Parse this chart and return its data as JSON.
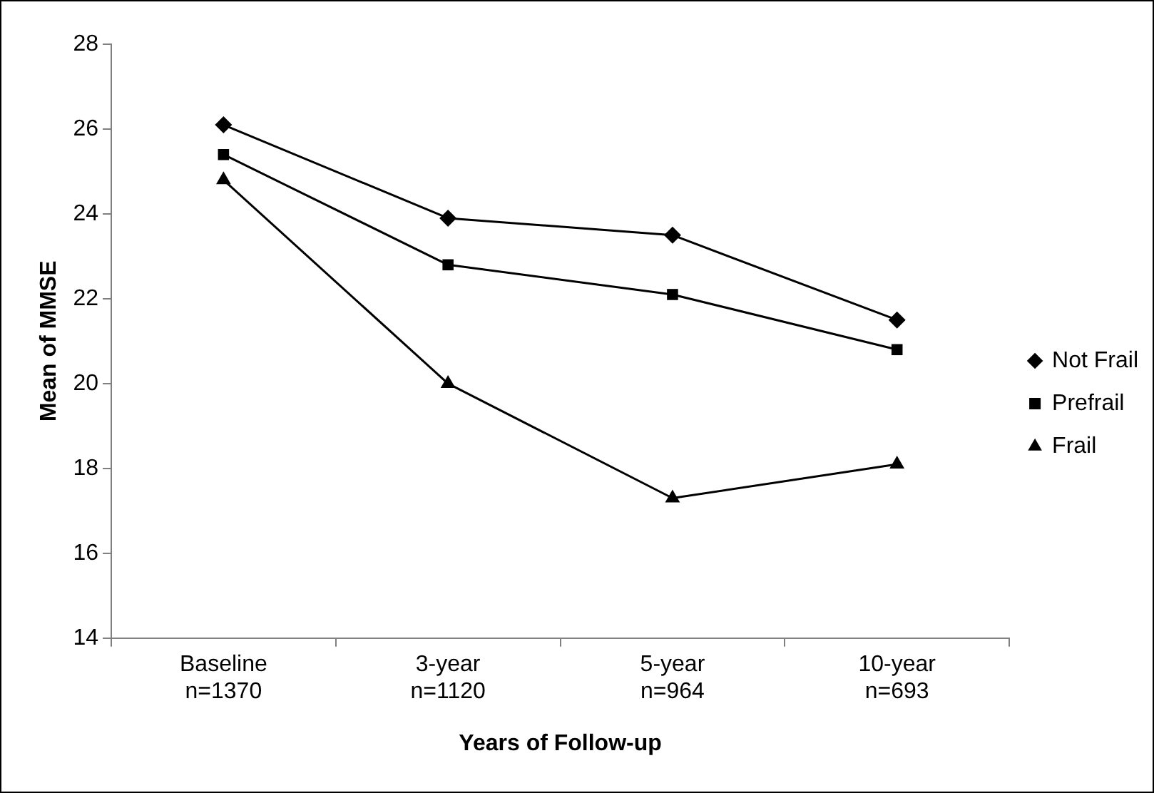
{
  "chart_data": {
    "type": "line",
    "xlabel": "Years of Follow-up",
    "ylabel": "Mean of MMSE",
    "categories": [
      "Baseline\nn=1370",
      "3-year\nn=1120",
      "5-year\nn=964",
      "10-year\nn=693"
    ],
    "series": [
      {
        "name": "Not Frail",
        "color": "#000000",
        "marker": "diamond",
        "values": [
          26.1,
          23.9,
          23.5,
          21.5
        ]
      },
      {
        "name": "Prefrail",
        "color": "#000000",
        "marker": "square",
        "values": [
          25.4,
          22.8,
          22.1,
          20.8
        ]
      },
      {
        "name": "Frail",
        "color": "#000000",
        "marker": "triangle",
        "values": [
          24.8,
          20.0,
          17.3,
          18.1
        ]
      }
    ],
    "ylim": [
      14,
      28
    ],
    "yticks": [
      14,
      16,
      18,
      20,
      22,
      24,
      26,
      28
    ],
    "legend": "right",
    "line_style": "solid"
  }
}
